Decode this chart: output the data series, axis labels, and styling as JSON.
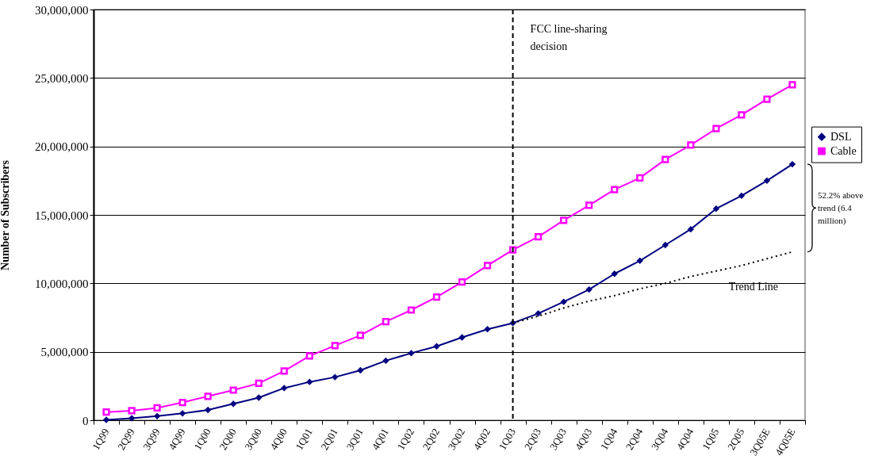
{
  "chart_data": {
    "type": "line",
    "ylabel": "Number of Subscribers",
    "categories": [
      "1Q99",
      "2Q99",
      "3Q99",
      "4Q99",
      "1Q00",
      "2Q00",
      "3Q00",
      "4Q00",
      "1Q01",
      "2Q01",
      "3Q01",
      "4Q01",
      "1Q02",
      "2Q02",
      "3Q02",
      "4Q02",
      "1Q03",
      "2Q03",
      "3Q03",
      "4Q03",
      "1Q04",
      "2Q04",
      "3Q04",
      "4Q04",
      "1Q05",
      "2Q05",
      "3Q05E",
      "4Q05E"
    ],
    "series": [
      {
        "name": "DSL",
        "color": "#000080",
        "marker": "diamond",
        "values": [
          30000,
          150000,
          300000,
          500000,
          750000,
          1200000,
          1650000,
          2350000,
          2800000,
          3150000,
          3650000,
          4350000,
          4900000,
          5400000,
          6050000,
          6650000,
          7100000,
          7800000,
          8650000,
          9550000,
          10700000,
          11650000,
          12800000,
          13950000,
          15450000,
          16400000,
          17500000,
          18700000
        ]
      },
      {
        "name": "Cable",
        "color": "#ff00ff",
        "marker": "square",
        "values": [
          600000,
          700000,
          900000,
          1300000,
          1750000,
          2200000,
          2700000,
          3600000,
          4700000,
          5450000,
          6200000,
          7200000,
          8050000,
          9000000,
          10100000,
          11300000,
          12450000,
          13400000,
          14600000,
          15700000,
          16850000,
          17700000,
          19050000,
          20100000,
          21300000,
          22300000,
          23450000,
          24500000
        ]
      },
      {
        "name": "Trend Line",
        "type": "line",
        "color": "#000000",
        "line_style": "dotted",
        "marker": "none",
        "values": [
          null,
          null,
          null,
          null,
          null,
          null,
          null,
          null,
          null,
          null,
          null,
          null,
          null,
          null,
          null,
          null,
          7100000,
          7600000,
          8200000,
          8700000,
          9100000,
          9600000,
          10000000,
          10500000,
          10900000,
          11300000,
          11800000,
          12300000
        ]
      }
    ],
    "ylim": [
      0,
      30000000
    ],
    "yticks": [
      0,
      {
        "value": 5000000,
        "label": "5,000,000"
      },
      {
        "value": 10000000,
        "label": "10,000,000"
      },
      {
        "value": 15000000,
        "label": "15,000,000"
      },
      {
        "value": 20000000,
        "label": "20,000,000"
      },
      {
        "value": 25000000,
        "label": "25,000,000"
      },
      {
        "value": 30000000,
        "label": "30,000,000"
      }
    ],
    "grid": "y",
    "legend": "right",
    "ref_lines": [
      {
        "axis": "x",
        "value": "1Q03",
        "label": "FCC line-sharing decision",
        "line_style": "dashed",
        "color": "#000000"
      }
    ],
    "annotations": [
      "52.2% above trend (6.4 million)"
    ]
  }
}
